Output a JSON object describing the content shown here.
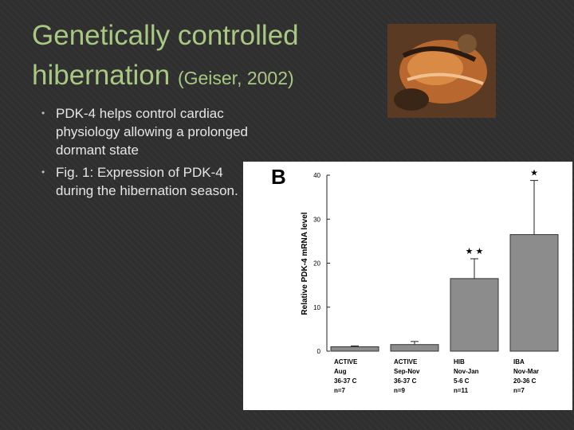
{
  "slide": {
    "title": "Genetically controlled hibernation",
    "citation": "(Geiser, 2002)",
    "bullets": [
      "PDK-4 helps control cardiac physiology allowing a prolonged dormant state",
      "Fig. 1: Expression of PDK-4 during the hibernation season."
    ]
  },
  "chart_data": {
    "type": "bar",
    "panel_label": "B",
    "y_label": "Relative PDK-4 mRNA level",
    "categories": [
      [
        "ACTIVE",
        "Aug",
        "36-37 C",
        "n=7"
      ],
      [
        "ACTIVE",
        "Sep-Nov",
        "36-37 C",
        "n=9"
      ],
      [
        "HIB",
        "Nov-Jan",
        "5-6 C",
        "n=11"
      ],
      [
        "IBA",
        "Nov-Mar",
        "20-36 C",
        "n=7"
      ]
    ],
    "values": [
      1,
      1.5,
      16.5,
      26.5
    ],
    "errors": [
      0.2,
      0.7,
      4.5,
      12.3
    ],
    "significance": [
      null,
      null,
      "★ ★",
      "★"
    ],
    "color": "#8c8c8c",
    "ylim": [
      0,
      40
    ],
    "yticks": [
      0,
      10,
      20,
      30,
      40
    ]
  }
}
